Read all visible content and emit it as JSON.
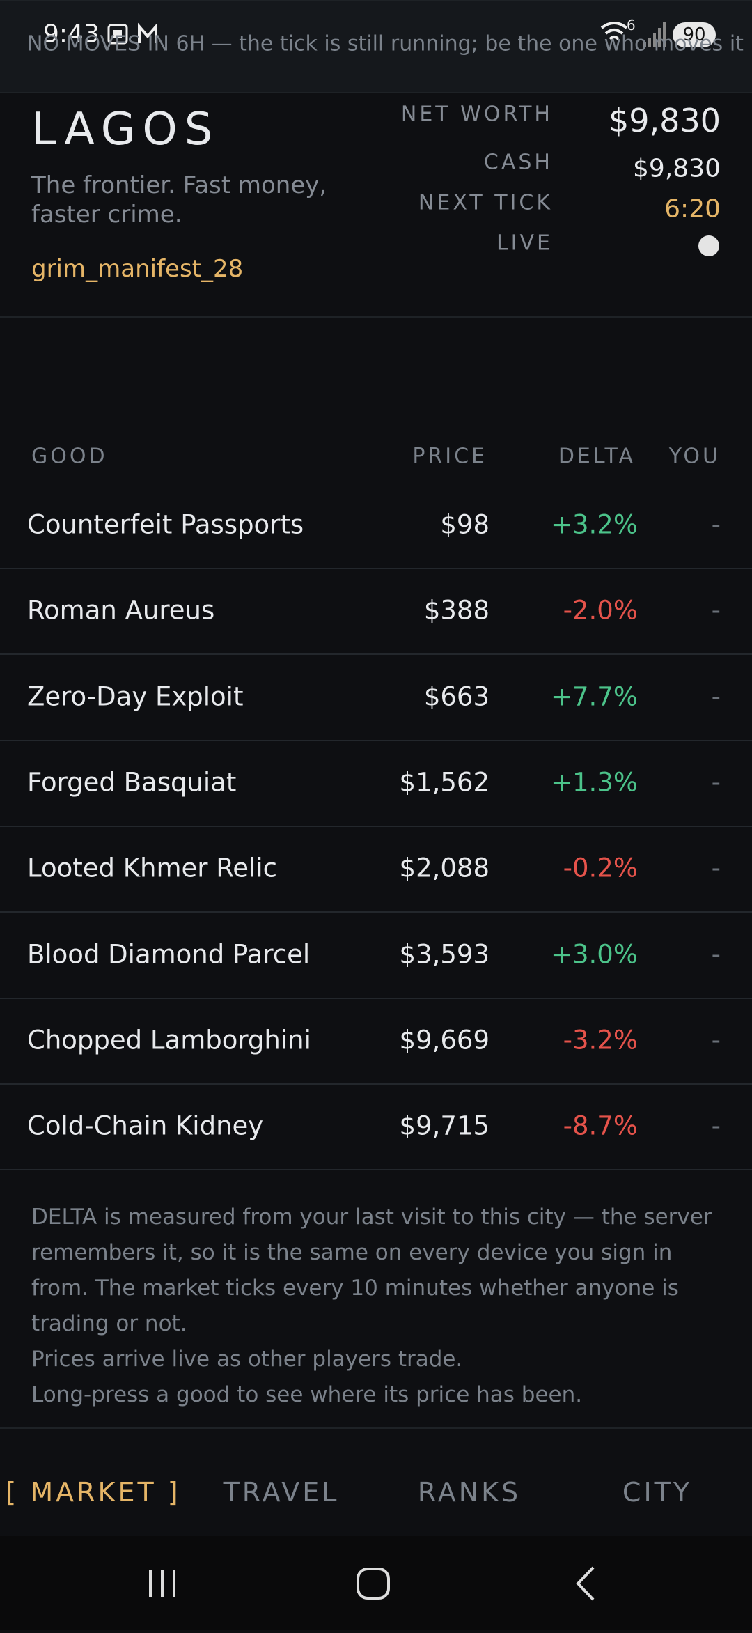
{
  "status_bar": {
    "time": "9:43",
    "wifi_badge": "6",
    "battery": "90"
  },
  "header": {
    "city": "LAGOS",
    "tagline": "The frontier. Fast money, faster crime.",
    "user": "grim_manifest_28"
  },
  "stats": [
    {
      "label": "NET WORTH",
      "value": "$9,830"
    },
    {
      "label": "CASH",
      "value": "$9,830"
    },
    {
      "label": "NEXT TICK",
      "value": "6:20"
    },
    {
      "label": "LIVE"
    }
  ],
  "banner": "NO MOVES IN 6H — the tick is still running; be the one who moves it",
  "table": {
    "columns": [
      "GOOD",
      "PRICE",
      "DELTA",
      "YOU"
    ],
    "rows": [
      [
        "Counterfeit Passports",
        "$98",
        "+3.2%",
        "-"
      ],
      [
        "Roman Aureus",
        "$388",
        "-2.0%",
        "-"
      ],
      [
        "Zero-Day Exploit",
        "$663",
        "+7.7%",
        "-"
      ],
      [
        "Forged Basquiat",
        "$1,562",
        "+1.3%",
        "-"
      ],
      [
        "Looted Khmer Relic",
        "$2,088",
        "-0.2%",
        "-"
      ],
      [
        "Blood Diamond Parcel",
        "$3,593",
        "+3.0%",
        "-"
      ],
      [
        "Chopped Lamborghini",
        "$9,669",
        "-3.2%",
        "-"
      ],
      [
        "Cold-Chain Kidney",
        "$9,715",
        "-8.7%",
        "-"
      ]
    ]
  },
  "note": [
    "DELTA is measured from your last visit to this city — the server remembers it, so it is the same on every device you sign in from. The market ticks every 10 minutes whether anyone is trading or not.",
    "Prices arrive live as other players trade.",
    "Long-press a good to see where its price has been."
  ],
  "nav": [
    "[ MARKET ]",
    "TRAVEL",
    "RANKS",
    "CITY"
  ]
}
